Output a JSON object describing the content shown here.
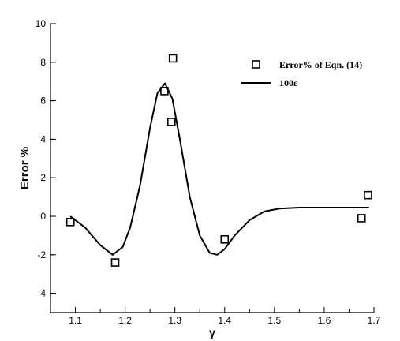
{
  "chart_data": {
    "type": "scatter",
    "xlabel": "γ",
    "ylabel": "Error %",
    "xlim": [
      1.05,
      1.7
    ],
    "ylim": [
      -5,
      10
    ],
    "x_ticks": [
      "1.1",
      "1.2",
      "1.3",
      "1.4",
      "1.5",
      "1.6",
      "1.7"
    ],
    "y_ticks": [
      "-4",
      "-2",
      "0",
      "2",
      "4",
      "6",
      "8",
      "10"
    ],
    "grid": false,
    "legend_position": "top-right",
    "series": [
      {
        "name": "Error% of Eqn. (14)",
        "marker": "open-square",
        "points": [
          {
            "x": 1.09,
            "y": -0.3
          },
          {
            "x": 1.18,
            "y": -2.4
          },
          {
            "x": 1.279,
            "y": 6.5
          },
          {
            "x": 1.293,
            "y": 4.9
          },
          {
            "x": 1.296,
            "y": 8.2
          },
          {
            "x": 1.4,
            "y": -1.2
          },
          {
            "x": 1.675,
            "y": -0.1
          },
          {
            "x": 1.688,
            "y": 1.1
          }
        ]
      },
      {
        "name": "100ε",
        "style": "solid-line",
        "points": [
          {
            "x": 1.09,
            "y": 0.0
          },
          {
            "x": 1.12,
            "y": -0.6
          },
          {
            "x": 1.15,
            "y": -1.5
          },
          {
            "x": 1.175,
            "y": -2.0
          },
          {
            "x": 1.195,
            "y": -1.6
          },
          {
            "x": 1.21,
            "y": -0.6
          },
          {
            "x": 1.23,
            "y": 1.6
          },
          {
            "x": 1.25,
            "y": 4.6
          },
          {
            "x": 1.265,
            "y": 6.4
          },
          {
            "x": 1.28,
            "y": 6.9
          },
          {
            "x": 1.295,
            "y": 6.1
          },
          {
            "x": 1.31,
            "y": 4.0
          },
          {
            "x": 1.33,
            "y": 1.0
          },
          {
            "x": 1.35,
            "y": -1.0
          },
          {
            "x": 1.37,
            "y": -1.9
          },
          {
            "x": 1.385,
            "y": -2.0
          },
          {
            "x": 1.4,
            "y": -1.7
          },
          {
            "x": 1.42,
            "y": -1.0
          },
          {
            "x": 1.45,
            "y": -0.2
          },
          {
            "x": 1.48,
            "y": 0.25
          },
          {
            "x": 1.51,
            "y": 0.4
          },
          {
            "x": 1.55,
            "y": 0.45
          },
          {
            "x": 1.6,
            "y": 0.45
          },
          {
            "x": 1.69,
            "y": 0.45
          }
        ]
      }
    ]
  }
}
